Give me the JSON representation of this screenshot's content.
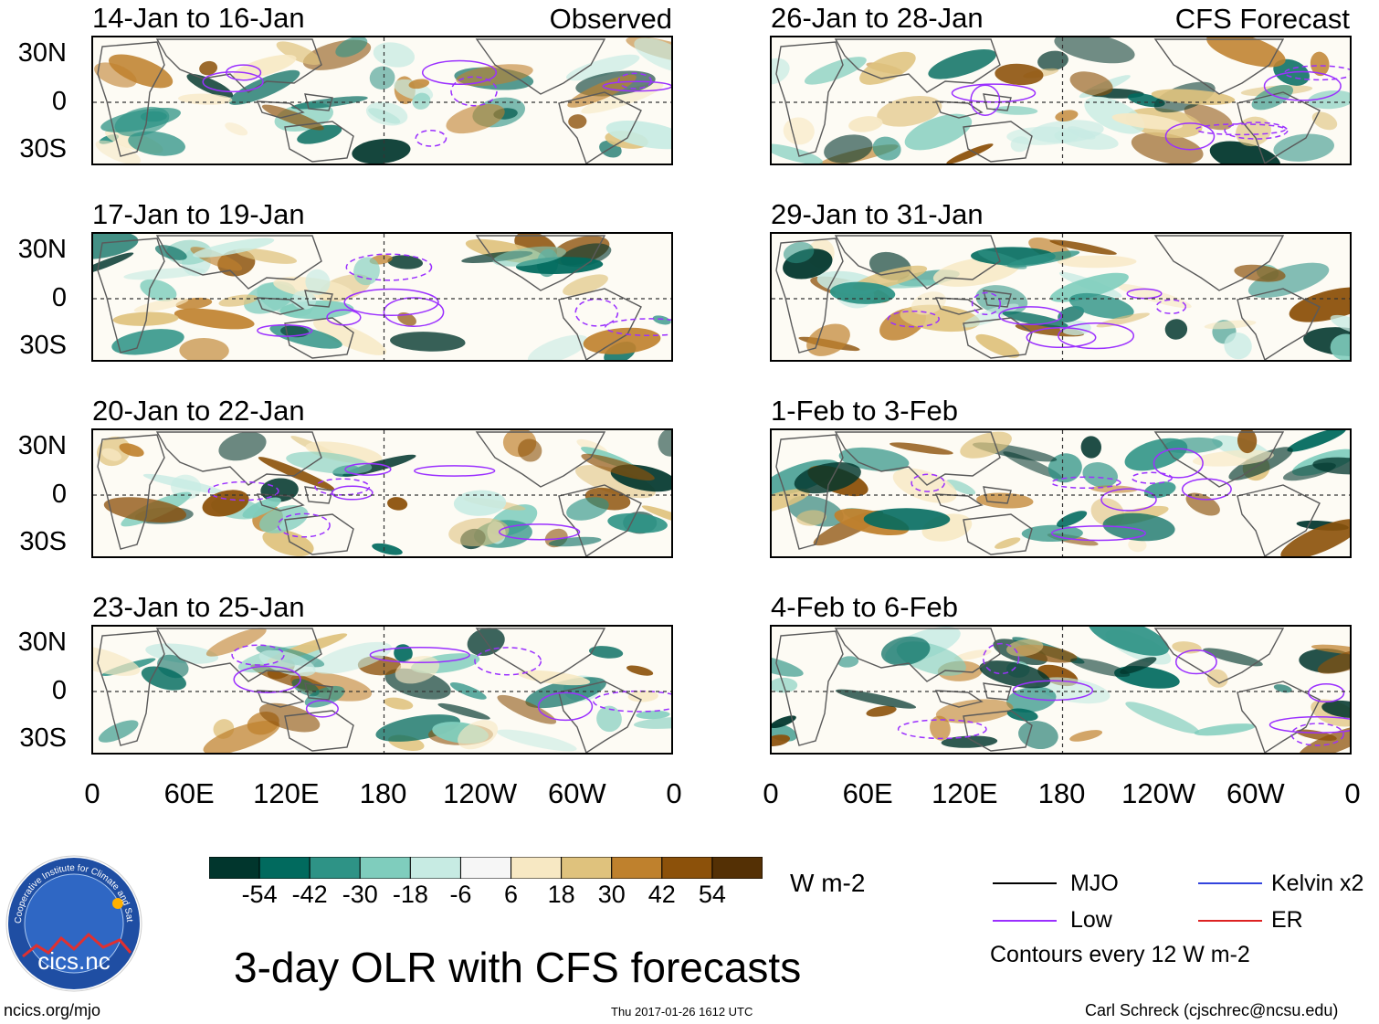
{
  "chart_data": {
    "type": "heatmap",
    "title": "3-day OLR with CFS forecasts",
    "variable": "OLR anomaly",
    "units": "W m-2",
    "observed_tag": "Observed",
    "forecast_tag": "CFS Forecast",
    "observed_panels": [
      {
        "title": "14-Jan to 16-Jan"
      },
      {
        "title": "17-Jan to 19-Jan"
      },
      {
        "title": "20-Jan to 22-Jan"
      },
      {
        "title": "23-Jan to 25-Jan"
      }
    ],
    "forecast_panels": [
      {
        "title": "26-Jan to 28-Jan"
      },
      {
        "title": "29-Jan to 31-Jan"
      },
      {
        "title": "1-Feb to 3-Feb"
      },
      {
        "title": "4-Feb to 6-Feb"
      }
    ],
    "lat_ticks": [
      "30N",
      "0",
      "30S"
    ],
    "lon_ticks": [
      "0",
      "60E",
      "120E",
      "180",
      "120W",
      "60W",
      "0"
    ],
    "colorbar": {
      "labels": [
        "-54",
        "-42",
        "-30",
        "-18",
        "-6",
        "6",
        "18",
        "30",
        "42",
        "54"
      ],
      "colors": [
        "#01362d",
        "#016a5e",
        "#2e9386",
        "#7fcdbd",
        "#c7ebe3",
        "#f6f6f6",
        "#f7e8c3",
        "#dfc27d",
        "#bf812d",
        "#8c510a",
        "#543005"
      ]
    },
    "legend": [
      {
        "label": "MJO",
        "color": "#000000"
      },
      {
        "label": "Kelvin x2",
        "color": "#3344dd"
      },
      {
        "label": "Low",
        "color": "#9b30ff"
      },
      {
        "label": "ER",
        "color": "#dd2222"
      }
    ],
    "contour_note": "Contours every 12 W m-2"
  },
  "footer": {
    "logo_text": "cics.nc",
    "logo_ring_text": "Cooperative Institute for Climate and Satellites",
    "website": "ncics.org/mjo",
    "timestamp": "Thu 2017-01-26 1612 UTC",
    "credit": "Carl Schreck (cjschrec@ncsu.edu)"
  }
}
